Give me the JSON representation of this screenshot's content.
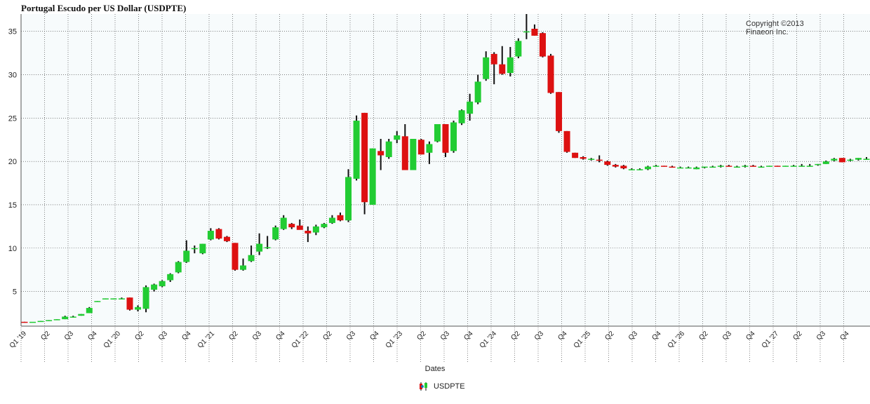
{
  "header": {
    "title": "Portugal Escudo per US Dollar (USDPTE)"
  },
  "watermark": {
    "line1": "Copyright ©2013",
    "line2": "Finaeon Inc."
  },
  "legend": {
    "label": "USDPTE",
    "icon": "candlestick-legend-icon"
  },
  "colors": {
    "up": "#22cc33",
    "down": "#dd1111",
    "wick": "#111111",
    "plot_bg": "#f7fbfc",
    "grid": "#333333"
  },
  "chart_data": {
    "type": "candlestick",
    "title": "Portugal Escudo per US Dollar (USDPTE)",
    "xlabel": "Dates",
    "ylabel": "",
    "ylim": [
      1,
      37
    ],
    "yticks": [
      5,
      10,
      15,
      20,
      25,
      30,
      35
    ],
    "grid": true,
    "legend_position": "bottom",
    "x_tick_labels": [
      "Q1 '19",
      "Q2",
      "Q3",
      "Q4",
      "Q1 '20",
      "Q2",
      "Q3",
      "Q4",
      "Q1 '21",
      "Q2",
      "Q3",
      "Q4",
      "Q1 '22",
      "Q2",
      "Q3",
      "Q4",
      "Q1 '23",
      "Q2",
      "Q3",
      "Q4",
      "Q1 '24",
      "Q2",
      "Q3",
      "Q4",
      "Q1 '25",
      "Q2",
      "Q3",
      "Q4",
      "Q1 '26",
      "Q2",
      "Q3",
      "Q4",
      "Q1 '27",
      "Q2",
      "Q3",
      "Q4"
    ],
    "series": [
      {
        "name": "USDPTE",
        "candles": [
          [
            1.5,
            1.5,
            1.4,
            1.4
          ],
          [
            1.5,
            1.5,
            1.5,
            1.5
          ],
          [
            1.5,
            1.6,
            1.5,
            1.6
          ],
          [
            1.6,
            1.7,
            1.6,
            1.7
          ],
          [
            1.7,
            1.8,
            1.7,
            1.8
          ],
          [
            1.8,
            2.2,
            1.8,
            2.1
          ],
          [
            2.1,
            2.2,
            2.0,
            2.1
          ],
          [
            2.2,
            2.4,
            2.2,
            2.4
          ],
          [
            2.5,
            3.2,
            2.5,
            3.1
          ],
          [
            3.8,
            3.9,
            3.8,
            3.9
          ],
          [
            4.1,
            4.2,
            4.1,
            4.2
          ],
          [
            4.1,
            4.2,
            4.1,
            4.2
          ],
          [
            4.2,
            4.3,
            4.1,
            4.2
          ],
          [
            4.3,
            4.3,
            2.8,
            2.9
          ],
          [
            2.9,
            3.4,
            2.7,
            3.2
          ],
          [
            3.0,
            5.7,
            2.6,
            5.5
          ],
          [
            5.2,
            5.9,
            5.0,
            5.8
          ],
          [
            5.6,
            6.3,
            5.5,
            6.2
          ],
          [
            6.3,
            7.1,
            6.1,
            7.0
          ],
          [
            7.2,
            8.5,
            7.1,
            8.4
          ],
          [
            8.4,
            10.9,
            8.3,
            9.7
          ],
          [
            9.9,
            10.3,
            9.4,
            10.0
          ],
          [
            9.4,
            10.5,
            9.3,
            10.5
          ],
          [
            11.0,
            12.3,
            10.9,
            12.0
          ],
          [
            12.2,
            12.3,
            11.0,
            11.1
          ],
          [
            11.3,
            11.4,
            10.7,
            10.8
          ],
          [
            10.6,
            10.6,
            7.4,
            7.5
          ],
          [
            7.5,
            8.8,
            7.4,
            8.0
          ],
          [
            8.5,
            10.3,
            8.4,
            9.2
          ],
          [
            9.6,
            11.7,
            9.2,
            10.5
          ],
          [
            10.0,
            11.4,
            9.9,
            10.1
          ],
          [
            11.0,
            12.6,
            10.9,
            12.4
          ],
          [
            12.2,
            13.8,
            12.1,
            13.5
          ],
          [
            12.8,
            12.9,
            12.2,
            12.4
          ],
          [
            12.6,
            13.3,
            12.2,
            12.1
          ],
          [
            12.0,
            12.5,
            10.7,
            11.7
          ],
          [
            11.8,
            12.7,
            11.5,
            12.5
          ],
          [
            12.4,
            12.9,
            12.3,
            12.8
          ],
          [
            12.9,
            13.8,
            12.8,
            13.5
          ],
          [
            13.8,
            14.1,
            13.1,
            13.2
          ],
          [
            13.2,
            19.1,
            13.0,
            18.2
          ],
          [
            18.0,
            25.3,
            17.8,
            24.7
          ],
          [
            25.6,
            25.6,
            13.9,
            15.3
          ],
          [
            15.0,
            21.5,
            15.0,
            21.5
          ],
          [
            21.2,
            22.6,
            19.0,
            20.7
          ],
          [
            20.5,
            22.6,
            20.3,
            22.3
          ],
          [
            22.5,
            23.5,
            22.1,
            23.0
          ],
          [
            22.9,
            24.3,
            19.0,
            19.0
          ],
          [
            19.0,
            22.6,
            19.0,
            22.6
          ],
          [
            22.5,
            22.6,
            20.8,
            20.8
          ],
          [
            21.0,
            22.3,
            19.7,
            22.0
          ],
          [
            22.3,
            24.3,
            22.2,
            24.3
          ],
          [
            24.3,
            24.3,
            20.5,
            21.0
          ],
          [
            21.2,
            24.7,
            21.0,
            24.5
          ],
          [
            24.4,
            26.0,
            24.2,
            25.9
          ],
          [
            25.5,
            27.8,
            24.7,
            26.9
          ],
          [
            26.8,
            30.0,
            26.6,
            29.2
          ],
          [
            29.5,
            32.7,
            29.3,
            32.0
          ],
          [
            32.4,
            32.6,
            28.9,
            31.2
          ],
          [
            31.2,
            33.3,
            30.0,
            30.1
          ],
          [
            30.2,
            33.2,
            29.8,
            32.0
          ],
          [
            32.1,
            34.2,
            31.9,
            33.9
          ],
          [
            34.9,
            37.0,
            34.1,
            35.0
          ],
          [
            35.3,
            35.8,
            34.5,
            34.5
          ],
          [
            34.8,
            34.9,
            32.0,
            32.1
          ],
          [
            32.2,
            32.4,
            27.8,
            27.9
          ],
          [
            28.0,
            28.0,
            23.3,
            23.5
          ],
          [
            23.5,
            23.5,
            21.0,
            21.1
          ],
          [
            21.0,
            21.0,
            20.4,
            20.4
          ],
          [
            20.5,
            20.6,
            20.2,
            20.3
          ],
          [
            20.3,
            20.4,
            20.1,
            20.3
          ],
          [
            20.2,
            20.7,
            19.9,
            20.1
          ],
          [
            20.0,
            20.1,
            19.5,
            19.6
          ],
          [
            19.6,
            19.7,
            19.3,
            19.4
          ],
          [
            19.5,
            19.6,
            19.1,
            19.2
          ],
          [
            19.1,
            19.2,
            19.0,
            19.1
          ],
          [
            19.1,
            19.2,
            19.0,
            19.1
          ],
          [
            19.1,
            19.5,
            19.0,
            19.4
          ],
          [
            19.4,
            19.6,
            19.4,
            19.5
          ],
          [
            19.5,
            19.5,
            19.4,
            19.4
          ],
          [
            19.4,
            19.5,
            19.3,
            19.3
          ],
          [
            19.3,
            19.4,
            19.2,
            19.3
          ],
          [
            19.3,
            19.4,
            19.2,
            19.3
          ],
          [
            19.1,
            19.4,
            19.1,
            19.3
          ],
          [
            19.3,
            19.4,
            19.2,
            19.4
          ],
          [
            19.4,
            19.5,
            19.3,
            19.4
          ],
          [
            19.4,
            19.6,
            19.3,
            19.5
          ],
          [
            19.5,
            19.6,
            19.4,
            19.4
          ],
          [
            19.4,
            19.5,
            19.3,
            19.4
          ],
          [
            19.4,
            19.6,
            19.3,
            19.5
          ],
          [
            19.5,
            19.6,
            19.4,
            19.4
          ],
          [
            19.4,
            19.5,
            19.3,
            19.4
          ],
          [
            19.4,
            19.5,
            19.4,
            19.5
          ],
          [
            19.5,
            19.5,
            19.4,
            19.4
          ],
          [
            19.4,
            19.5,
            19.4,
            19.5
          ],
          [
            19.5,
            19.6,
            19.4,
            19.5
          ],
          [
            19.5,
            19.7,
            19.4,
            19.5
          ],
          [
            19.5,
            19.7,
            19.4,
            19.5
          ],
          [
            19.6,
            19.7,
            19.5,
            19.7
          ],
          [
            19.7,
            20.1,
            19.7,
            20.0
          ],
          [
            20.1,
            20.4,
            20.0,
            20.3
          ],
          [
            20.4,
            20.4,
            19.9,
            19.9
          ],
          [
            20.1,
            20.3,
            20.0,
            20.2
          ],
          [
            20.2,
            20.4,
            20.1,
            20.4
          ],
          [
            20.3,
            20.5,
            20.2,
            20.3
          ]
        ]
      }
    ]
  }
}
